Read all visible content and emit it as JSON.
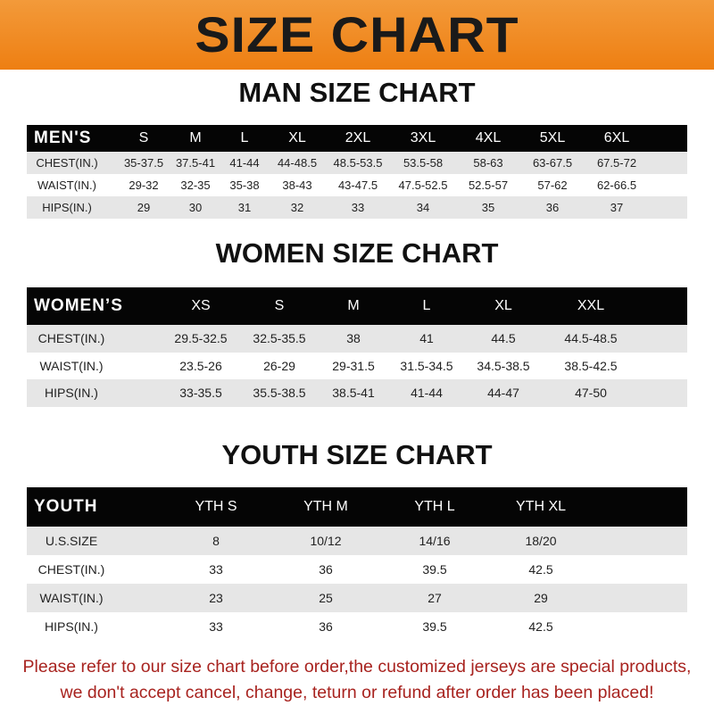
{
  "title": "SIZE CHART",
  "colors": {
    "banner": "#ee7f12",
    "header_row": "#050505",
    "alt_row": "#e6e6e6",
    "note": "#a8231f"
  },
  "men": {
    "title": "MAN SIZE CHART",
    "header": [
      "MEN'S",
      "S",
      "M",
      "L",
      "XL",
      "2XL",
      "3XL",
      "4XL",
      "5XL",
      "6XL"
    ],
    "rows": [
      [
        "CHEST(IN.)",
        "35-37.5",
        "37.5-41",
        "41-44",
        "44-48.5",
        "48.5-53.5",
        "53.5-58",
        "58-63",
        "63-67.5",
        "67.5-72"
      ],
      [
        "WAIST(IN.)",
        "29-32",
        "32-35",
        "35-38",
        "38-43",
        "43-47.5",
        "47.5-52.5",
        "52.5-57",
        "57-62",
        "62-66.5"
      ],
      [
        "HIPS(IN.)",
        "29",
        "30",
        "31",
        "32",
        "33",
        "34",
        "35",
        "36",
        "37"
      ]
    ]
  },
  "women": {
    "title": "WOMEN SIZE CHART",
    "header": [
      "WOMEN’S",
      "XS",
      "S",
      "M",
      "L",
      "XL",
      "XXL"
    ],
    "rows": [
      [
        "CHEST(IN.)",
        "29.5-32.5",
        "32.5-35.5",
        "38",
        "41",
        "44.5",
        "44.5-48.5"
      ],
      [
        "WAIST(IN.)",
        "23.5-26",
        "26-29",
        "29-31.5",
        "31.5-34.5",
        "34.5-38.5",
        "38.5-42.5"
      ],
      [
        "HIPS(IN.)",
        "33-35.5",
        "35.5-38.5",
        "38.5-41",
        "41-44",
        "44-47",
        "47-50"
      ]
    ]
  },
  "youth": {
    "title": "YOUTH SIZE CHART",
    "header": [
      "YOUTH",
      "YTH S",
      "YTH M",
      "YTH L",
      "YTH XL"
    ],
    "rows": [
      [
        "U.S.SIZE",
        "8",
        "10/12",
        "14/16",
        "18/20"
      ],
      [
        "CHEST(IN.)",
        "33",
        "36",
        "39.5",
        "42.5"
      ],
      [
        "WAIST(IN.)",
        "23",
        "25",
        "27",
        "29"
      ],
      [
        "HIPS(IN.)",
        "33",
        "36",
        "39.5",
        "42.5"
      ]
    ]
  },
  "note": {
    "line1": "Please refer to our size chart before order,the customized jerseys are special products,",
    "line2": "we don't accept cancel, change, teturn or refund after order has been placed!"
  }
}
